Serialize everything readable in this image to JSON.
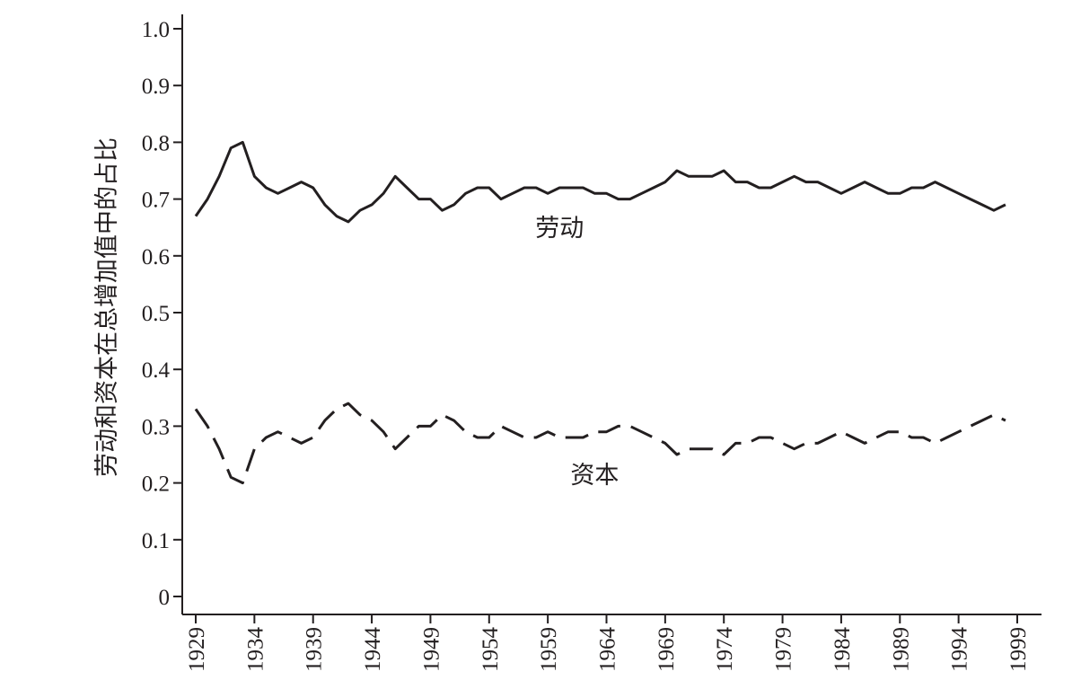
{
  "chart_data": {
    "type": "line",
    "title": "",
    "xlabel": "",
    "ylabel": "劳动和资本在总增加值中的占比",
    "xlim": [
      1929,
      1999
    ],
    "ylim": [
      0,
      1.0
    ],
    "x_ticks": [
      "1929",
      "1934",
      "1939",
      "1944",
      "1949",
      "1954",
      "1959",
      "1964",
      "1969",
      "1974",
      "1979",
      "1984",
      "1989",
      "1994",
      "1999"
    ],
    "y_ticks": [
      "0",
      "0.1",
      "0.2",
      "0.3",
      "0.4",
      "0.5",
      "0.6",
      "0.7",
      "0.8",
      "0.9",
      "1.0"
    ],
    "grid": false,
    "legend": "none (series labeled inline)",
    "colors": {
      "ink": "#231f20",
      "background": "#ffffff"
    },
    "x": [
      1929,
      1930,
      1931,
      1932,
      1933,
      1934,
      1935,
      1936,
      1937,
      1938,
      1939,
      1940,
      1941,
      1942,
      1943,
      1944,
      1945,
      1946,
      1947,
      1948,
      1949,
      1950,
      1951,
      1952,
      1953,
      1954,
      1955,
      1956,
      1957,
      1958,
      1959,
      1960,
      1961,
      1962,
      1963,
      1964,
      1965,
      1966,
      1967,
      1968,
      1969,
      1970,
      1971,
      1972,
      1973,
      1974,
      1975,
      1976,
      1977,
      1978,
      1979,
      1980,
      1981,
      1982,
      1983,
      1984,
      1985,
      1986,
      1987,
      1988,
      1989,
      1990,
      1991,
      1992,
      1993,
      1994,
      1995,
      1996,
      1997,
      1998
    ],
    "series": [
      {
        "name": "劳动",
        "style": "solid",
        "label_at": [
          1960,
          0.65
        ],
        "values": [
          0.67,
          0.7,
          0.74,
          0.79,
          0.8,
          0.74,
          0.72,
          0.71,
          0.72,
          0.73,
          0.72,
          0.69,
          0.67,
          0.66,
          0.68,
          0.69,
          0.71,
          0.74,
          0.72,
          0.7,
          0.7,
          0.68,
          0.69,
          0.71,
          0.72,
          0.72,
          0.7,
          0.71,
          0.72,
          0.72,
          0.71,
          0.72,
          0.72,
          0.72,
          0.71,
          0.71,
          0.7,
          0.7,
          0.71,
          0.72,
          0.73,
          0.75,
          0.74,
          0.74,
          0.74,
          0.75,
          0.73,
          0.73,
          0.72,
          0.72,
          0.73,
          0.74,
          0.73,
          0.73,
          0.72,
          0.71,
          0.72,
          0.73,
          0.72,
          0.71,
          0.71,
          0.72,
          0.72,
          0.73,
          0.72,
          0.71,
          0.7,
          0.69,
          0.68,
          0.69
        ]
      },
      {
        "name": "资本",
        "style": "dashed",
        "label_at": [
          1963,
          0.215
        ],
        "values": [
          0.33,
          0.3,
          0.26,
          0.21,
          0.2,
          0.26,
          0.28,
          0.29,
          0.28,
          0.27,
          0.28,
          0.31,
          0.33,
          0.34,
          0.32,
          0.31,
          0.29,
          0.26,
          0.28,
          0.3,
          0.3,
          0.32,
          0.31,
          0.29,
          0.28,
          0.28,
          0.3,
          0.29,
          0.28,
          0.28,
          0.29,
          0.28,
          0.28,
          0.28,
          0.29,
          0.29,
          0.3,
          0.3,
          0.29,
          0.28,
          0.27,
          0.25,
          0.26,
          0.26,
          0.26,
          0.25,
          0.27,
          0.27,
          0.28,
          0.28,
          0.27,
          0.26,
          0.27,
          0.27,
          0.28,
          0.29,
          0.28,
          0.27,
          0.28,
          0.29,
          0.29,
          0.28,
          0.28,
          0.27,
          0.28,
          0.29,
          0.3,
          0.31,
          0.32,
          0.31
        ]
      }
    ]
  }
}
